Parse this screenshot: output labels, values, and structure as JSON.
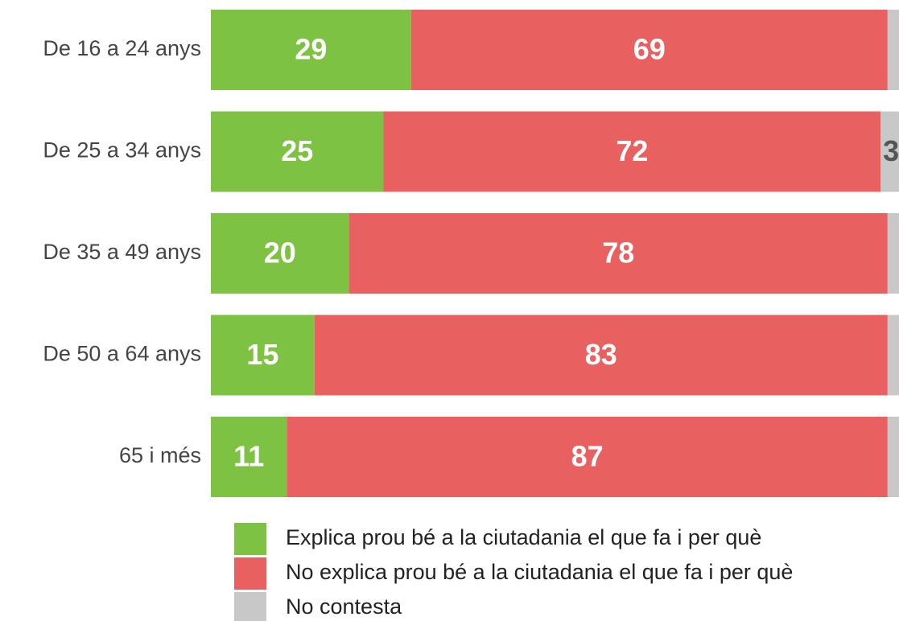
{
  "chart_data": {
    "type": "bar",
    "orientation": "horizontal",
    "stacked": true,
    "categories": [
      "De 16 a 24 anys",
      "De 25 a 34 anys",
      "De 35 a 49 anys",
      "De 50 a 64 anys",
      "65 i més"
    ],
    "series": [
      {
        "name": "Explica prou bé a la ciutadania el que fa i per què",
        "color": "#7dc242",
        "values": [
          29,
          25,
          20,
          15,
          11
        ]
      },
      {
        "name": "No explica prou bé a la ciutadania el que fa i per què",
        "color": "#e86060",
        "values": [
          69,
          72,
          78,
          83,
          87
        ]
      },
      {
        "name": "No contesta",
        "color": "#c8c8c8",
        "values": [
          2,
          3,
          2,
          2,
          2
        ],
        "value_labels": [
          null,
          "3",
          null,
          null,
          null
        ]
      }
    ],
    "xlim": [
      0,
      100
    ]
  }
}
